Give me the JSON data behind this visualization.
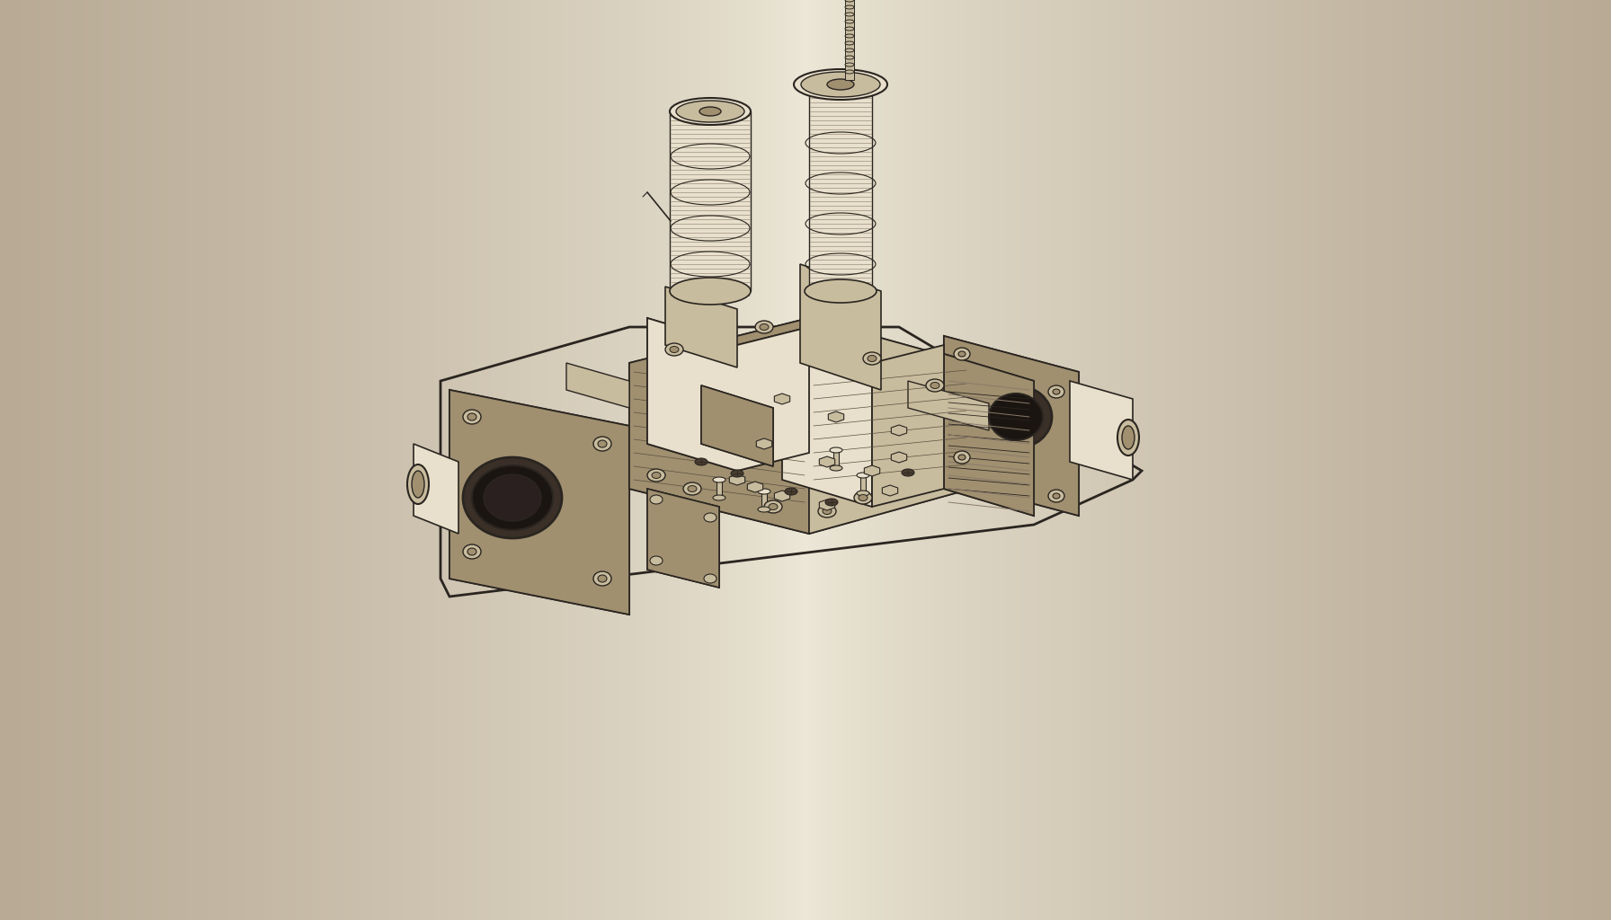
{
  "bg_left_color": "#b8aa95",
  "bg_center_color": "#ede8d8",
  "bg_right_color": "#b8aa95",
  "line_color": "#2a2520",
  "fill_light": "#e8e0cc",
  "fill_mid": "#c8bc9e",
  "fill_dark": "#a09070",
  "fill_shadow": "#706050",
  "highlight": "#f0ece0",
  "fig_width": 17.92,
  "fig_height": 10.24,
  "dpi": 100
}
